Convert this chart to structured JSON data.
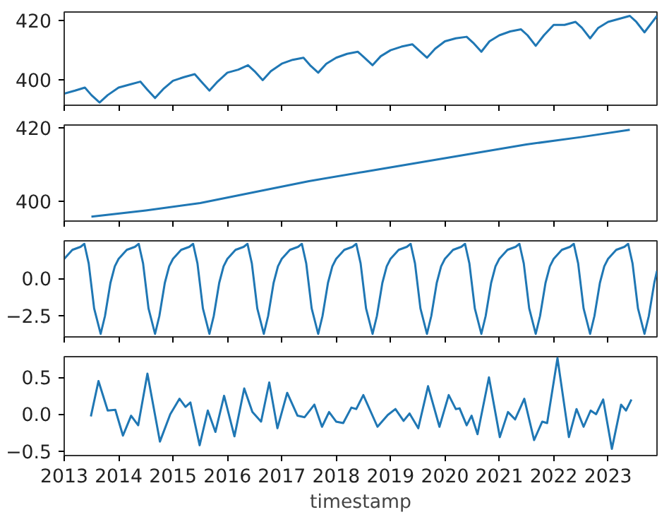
{
  "chart_data": [
    {
      "type": "line",
      "xlim": [
        2013,
        2023.9
      ],
      "xticks": [
        2013,
        2014,
        2015,
        2016,
        2017,
        2018,
        2019,
        2020,
        2021,
        2022,
        2023
      ],
      "ylim": [
        391.6,
        422.8
      ],
      "yticks": [
        400,
        420
      ],
      "tick_labels": "y",
      "grid": false,
      "series": [
        {
          "color": "#1f77b4",
          "x": [
            2013.0,
            2013.2,
            2013.38,
            2013.5,
            2013.65,
            2013.8,
            2014.0,
            2014.2,
            2014.4,
            2014.52,
            2014.67,
            2014.82,
            2015.0,
            2015.2,
            2015.4,
            2015.52,
            2015.67,
            2015.82,
            2016.0,
            2016.2,
            2016.38,
            2016.5,
            2016.65,
            2016.8,
            2017.0,
            2017.2,
            2017.4,
            2017.52,
            2017.67,
            2017.82,
            2018.0,
            2018.2,
            2018.4,
            2018.52,
            2018.67,
            2018.82,
            2019.0,
            2019.2,
            2019.4,
            2019.52,
            2019.67,
            2019.82,
            2020.0,
            2020.2,
            2020.4,
            2020.52,
            2020.67,
            2020.82,
            2021.0,
            2021.2,
            2021.4,
            2021.52,
            2021.67,
            2021.82,
            2022.0,
            2022.2,
            2022.4,
            2022.52,
            2022.67,
            2022.82,
            2023.0,
            2023.2,
            2023.4,
            2023.52,
            2023.67,
            2023.9
          ],
          "values": [
            395.5,
            396.5,
            397.5,
            395,
            392.5,
            395,
            397.5,
            398.5,
            399.5,
            397,
            394,
            397,
            399.8,
            401,
            402,
            399.5,
            396.5,
            399.5,
            402.5,
            403.5,
            405,
            403,
            400,
            403,
            405.5,
            406.8,
            407.5,
            405,
            402.5,
            405.5,
            407.5,
            408.8,
            409.5,
            407.5,
            405,
            408,
            410,
            411.2,
            412,
            410,
            407.5,
            410.5,
            413,
            414,
            414.5,
            412.5,
            409.5,
            413,
            415,
            416.3,
            417,
            415,
            411.5,
            415,
            418.5,
            418.5,
            419.5,
            417.5,
            414,
            417.5,
            419.5,
            420.5,
            421.5,
            419.5,
            416,
            421.5
          ]
        }
      ]
    },
    {
      "type": "line",
      "xlim": [
        2013,
        2023.9
      ],
      "xticks": [
        2013,
        2014,
        2015,
        2016,
        2017,
        2018,
        2019,
        2020,
        2021,
        2022,
        2023
      ],
      "ylim": [
        394.6,
        420.8
      ],
      "yticks": [
        400,
        420
      ],
      "tick_labels": "y",
      "grid": false,
      "series": [
        {
          "color": "#1f77b4",
          "x": [
            2013.5,
            2014.5,
            2015.5,
            2016.5,
            2017.5,
            2018.5,
            2019.5,
            2020.5,
            2021.5,
            2022.5,
            2023.4
          ],
          "values": [
            395.8,
            397.5,
            399.5,
            402.5,
            405.5,
            408,
            410.5,
            413,
            415.5,
            417.5,
            419.5
          ]
        }
      ]
    },
    {
      "type": "line",
      "xlim": [
        2013,
        2023.9
      ],
      "xticks": [
        2013,
        2014,
        2015,
        2016,
        2017,
        2018,
        2019,
        2020,
        2021,
        2022,
        2023
      ],
      "ylim": [
        -3.9,
        2.5
      ],
      "yticks": [
        {
          "value": 0,
          "label": "0.0"
        },
        {
          "value": -2.5,
          "label": "−2.5"
        }
      ],
      "tick_labels": "y",
      "grid": false,
      "series": [
        {
          "color": "#1f77b4",
          "x": [
            2013.0,
            2013.15,
            2013.3,
            2013.37,
            2013.45,
            2013.55,
            2013.67,
            2013.75,
            2013.85,
            2013.93,
            2014.0,
            2014.15,
            2014.3,
            2014.37,
            2014.45,
            2014.55,
            2014.67,
            2014.75,
            2014.85,
            2014.93,
            2015.0,
            2015.15,
            2015.3,
            2015.37,
            2015.45,
            2015.55,
            2015.67,
            2015.75,
            2015.85,
            2015.93,
            2016.0,
            2016.15,
            2016.3,
            2016.37,
            2016.45,
            2016.55,
            2016.67,
            2016.75,
            2016.85,
            2016.93,
            2017.0,
            2017.15,
            2017.3,
            2017.37,
            2017.45,
            2017.55,
            2017.67,
            2017.75,
            2017.85,
            2017.93,
            2018.0,
            2018.15,
            2018.3,
            2018.37,
            2018.45,
            2018.55,
            2018.67,
            2018.75,
            2018.85,
            2018.93,
            2019.0,
            2019.15,
            2019.3,
            2019.37,
            2019.45,
            2019.55,
            2019.67,
            2019.75,
            2019.85,
            2019.93,
            2020.0,
            2020.15,
            2020.3,
            2020.37,
            2020.45,
            2020.55,
            2020.67,
            2020.75,
            2020.85,
            2020.93,
            2021.0,
            2021.15,
            2021.3,
            2021.37,
            2021.45,
            2021.55,
            2021.67,
            2021.75,
            2021.85,
            2021.93,
            2022.0,
            2022.15,
            2022.3,
            2022.37,
            2022.45,
            2022.55,
            2022.67,
            2022.75,
            2022.85,
            2022.93,
            2023.0,
            2023.15,
            2023.3,
            2023.37,
            2023.45,
            2023.55,
            2023.67,
            2023.75,
            2023.85,
            2023.9
          ],
          "values": [
            1.3,
            1.9,
            2.1,
            2.3,
            1.0,
            -2.0,
            -3.7,
            -2.5,
            -0.3,
            0.8,
            1.3,
            1.9,
            2.1,
            2.3,
            1.0,
            -2.0,
            -3.7,
            -2.5,
            -0.3,
            0.8,
            1.3,
            1.9,
            2.1,
            2.3,
            1.0,
            -2.0,
            -3.7,
            -2.5,
            -0.3,
            0.8,
            1.3,
            1.9,
            2.1,
            2.3,
            1.0,
            -2.0,
            -3.7,
            -2.5,
            -0.3,
            0.8,
            1.3,
            1.9,
            2.1,
            2.3,
            1.0,
            -2.0,
            -3.7,
            -2.5,
            -0.3,
            0.8,
            1.3,
            1.9,
            2.1,
            2.3,
            1.0,
            -2.0,
            -3.7,
            -2.5,
            -0.3,
            0.8,
            1.3,
            1.9,
            2.1,
            2.3,
            1.0,
            -2.0,
            -3.7,
            -2.5,
            -0.3,
            0.8,
            1.3,
            1.9,
            2.1,
            2.3,
            1.0,
            -2.0,
            -3.7,
            -2.5,
            -0.3,
            0.8,
            1.3,
            1.9,
            2.1,
            2.3,
            1.0,
            -2.0,
            -3.7,
            -2.5,
            -0.3,
            0.8,
            1.3,
            1.9,
            2.1,
            2.3,
            1.0,
            -2.0,
            -3.7,
            -2.5,
            -0.3,
            0.8,
            1.3,
            1.9,
            2.1,
            2.3,
            1.0,
            -2.0,
            -3.7,
            -2.5,
            -0.3,
            0.5
          ]
        }
      ]
    },
    {
      "type": "line",
      "xlabel": "timestamp",
      "xlim": [
        2013,
        2023.9
      ],
      "xticks": [
        2013,
        2014,
        2015,
        2016,
        2017,
        2018,
        2019,
        2020,
        2021,
        2022,
        2023
      ],
      "ylim": [
        -0.56,
        0.78
      ],
      "yticks": [
        {
          "value": -0.5,
          "label": "−0.5"
        },
        {
          "value": 0,
          "label": "0.0"
        },
        0.5
      ],
      "grid": false,
      "series": [
        {
          "color": "#1f77b4",
          "x": [
            2013.49,
            2013.63,
            2013.8,
            2013.94,
            2014.08,
            2014.23,
            2014.36,
            2014.53,
            2014.76,
            2014.95,
            2015.12,
            2015.23,
            2015.32,
            2015.49,
            2015.64,
            2015.78,
            2015.94,
            2016.13,
            2016.31,
            2016.46,
            2016.62,
            2016.77,
            2016.92,
            2017.1,
            2017.29,
            2017.42,
            2017.6,
            2017.74,
            2017.87,
            2018.0,
            2018.13,
            2018.28,
            2018.37,
            2018.5,
            2018.76,
            2018.95,
            2019.09,
            2019.24,
            2019.35,
            2019.51,
            2019.69,
            2019.9,
            2020.07,
            2020.2,
            2020.27,
            2020.4,
            2020.49,
            2020.6,
            2020.81,
            2021.01,
            2021.16,
            2021.29,
            2021.46,
            2021.64,
            2021.79,
            2021.88,
            2022.07,
            2022.28,
            2022.42,
            2022.55,
            2022.68,
            2022.78,
            2022.91,
            2023.07,
            2023.24,
            2023.33,
            2023.43
          ],
          "values": [
            -0.03,
            0.45,
            0.05,
            0.06,
            -0.29,
            -0.02,
            -0.15,
            0.55,
            -0.37,
            0.0,
            0.21,
            0.1,
            0.16,
            -0.42,
            0.05,
            -0.24,
            0.25,
            -0.3,
            0.35,
            0.03,
            -0.1,
            0.43,
            -0.19,
            0.29,
            -0.02,
            -0.04,
            0.13,
            -0.17,
            0.03,
            -0.1,
            -0.12,
            0.09,
            0.07,
            0.26,
            -0.17,
            -0.01,
            0.07,
            -0.09,
            0.01,
            -0.19,
            0.38,
            -0.17,
            0.26,
            0.07,
            0.08,
            -0.15,
            -0.02,
            -0.27,
            0.5,
            -0.31,
            0.03,
            -0.07,
            0.21,
            -0.35,
            -0.1,
            -0.12,
            0.76,
            -0.31,
            0.07,
            -0.17,
            0.05,
            0.0,
            0.2,
            -0.47,
            0.13,
            0.05,
            0.2
          ]
        }
      ]
    }
  ]
}
